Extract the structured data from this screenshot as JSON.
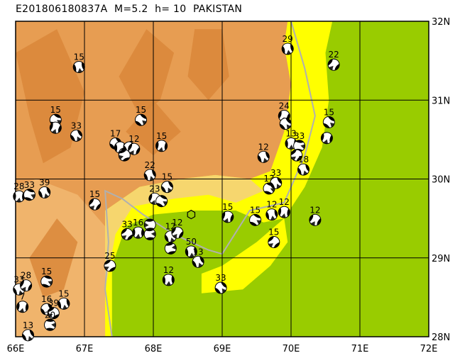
{
  "title": "E201806180837A  M=5.2  h= 10  PAKISTAN",
  "map": {
    "lon_range": [
      66,
      72
    ],
    "lat_range": [
      28,
      32
    ],
    "lon_ticks": [
      "66E",
      "67E",
      "68E",
      "69E",
      "70E",
      "71E",
      "72E"
    ],
    "lat_ticks": [
      "28N",
      "29N",
      "30N",
      "31N",
      "32N"
    ],
    "grid": true,
    "colors": {
      "highland_dark": "#d9873a",
      "highland": "#e79d52",
      "highland_light": "#f0b46c",
      "lowland_tan": "#f5d27a",
      "plain_yellow": "#ffff00",
      "plain_green": "#99cc00",
      "border": "#b0b0b0",
      "grid": "#000000"
    }
  },
  "epicenter": {
    "lon": 68.55,
    "lat": 29.55,
    "symbol": "hexagon-outline"
  },
  "events": [
    {
      "lon": 66.92,
      "lat": 31.42,
      "depth": "15",
      "rot": 30
    },
    {
      "lon": 66.58,
      "lat": 30.75,
      "depth": "15",
      "rot": -20
    },
    {
      "lon": 66.58,
      "lat": 30.65,
      "depth": "",
      "rot": 60
    },
    {
      "lon": 66.88,
      "lat": 30.55,
      "depth": "33",
      "rot": 10
    },
    {
      "lon": 66.05,
      "lat": 29.78,
      "depth": "28",
      "rot": 45
    },
    {
      "lon": 66.2,
      "lat": 29.8,
      "depth": "33",
      "rot": -30
    },
    {
      "lon": 66.42,
      "lat": 29.83,
      "depth": "39",
      "rot": 20
    },
    {
      "lon": 67.15,
      "lat": 29.68,
      "depth": "15",
      "rot": 80
    },
    {
      "lon": 67.45,
      "lat": 30.45,
      "depth": "17",
      "rot": 0
    },
    {
      "lon": 67.52,
      "lat": 30.4,
      "depth": "",
      "rot": 40
    },
    {
      "lon": 67.58,
      "lat": 30.32,
      "depth": "",
      "rot": -40
    },
    {
      "lon": 67.65,
      "lat": 30.4,
      "depth": "",
      "rot": 20
    },
    {
      "lon": 67.72,
      "lat": 30.38,
      "depth": "12",
      "rot": 70
    },
    {
      "lon": 67.58,
      "lat": 30.3,
      "depth": "",
      "rot": 110
    },
    {
      "lon": 67.82,
      "lat": 30.75,
      "depth": "15",
      "rot": -10
    },
    {
      "lon": 68.12,
      "lat": 30.42,
      "depth": "15",
      "rot": 50
    },
    {
      "lon": 67.95,
      "lat": 30.05,
      "depth": "22",
      "rot": 20
    },
    {
      "lon": 68.02,
      "lat": 29.75,
      "depth": "23",
      "rot": 60
    },
    {
      "lon": 68.12,
      "lat": 29.72,
      "depth": "",
      "rot": -20
    },
    {
      "lon": 68.2,
      "lat": 29.9,
      "depth": "15",
      "rot": 10
    },
    {
      "lon": 67.62,
      "lat": 29.3,
      "depth": "33",
      "rot": 90
    },
    {
      "lon": 67.78,
      "lat": 29.32,
      "depth": "16",
      "rot": 45
    },
    {
      "lon": 67.95,
      "lat": 29.3,
      "depth": "19",
      "rot": -50
    },
    {
      "lon": 67.95,
      "lat": 29.42,
      "depth": "",
      "rot": 130
    },
    {
      "lon": 68.25,
      "lat": 29.27,
      "depth": "12",
      "rot": 20
    },
    {
      "lon": 68.35,
      "lat": 29.32,
      "depth": "12",
      "rot": 75
    },
    {
      "lon": 68.25,
      "lat": 29.12,
      "depth": "",
      "rot": -60
    },
    {
      "lon": 68.55,
      "lat": 29.08,
      "depth": "50",
      "rot": 35
    },
    {
      "lon": 68.65,
      "lat": 28.95,
      "depth": "13",
      "rot": 15
    },
    {
      "lon": 67.37,
      "lat": 28.9,
      "depth": "25",
      "rot": 100
    },
    {
      "lon": 68.22,
      "lat": 28.72,
      "depth": "12",
      "rot": 40
    },
    {
      "lon": 68.98,
      "lat": 28.62,
      "depth": "33",
      "rot": 0
    },
    {
      "lon": 69.08,
      "lat": 29.52,
      "depth": "15",
      "rot": 60
    },
    {
      "lon": 69.48,
      "lat": 29.48,
      "depth": "15",
      "rot": -20
    },
    {
      "lon": 69.72,
      "lat": 29.55,
      "depth": "12",
      "rot": 30
    },
    {
      "lon": 69.9,
      "lat": 29.58,
      "depth": "12",
      "rot": 50
    },
    {
      "lon": 69.75,
      "lat": 29.2,
      "depth": "15",
      "rot": 90
    },
    {
      "lon": 70.35,
      "lat": 29.48,
      "depth": "12",
      "rot": 70
    },
    {
      "lon": 69.6,
      "lat": 30.28,
      "depth": "12",
      "rot": 20
    },
    {
      "lon": 69.68,
      "lat": 29.88,
      "depth": "13",
      "rot": -30
    },
    {
      "lon": 69.78,
      "lat": 29.95,
      "depth": "33",
      "rot": 10
    },
    {
      "lon": 69.9,
      "lat": 30.8,
      "depth": "24",
      "rot": 60
    },
    {
      "lon": 69.92,
      "lat": 30.7,
      "depth": "",
      "rot": 0
    },
    {
      "lon": 70.0,
      "lat": 30.45,
      "depth": "13",
      "rot": 40
    },
    {
      "lon": 70.12,
      "lat": 30.42,
      "depth": "33",
      "rot": -40
    },
    {
      "lon": 70.08,
      "lat": 30.3,
      "depth": "",
      "rot": 90
    },
    {
      "lon": 70.18,
      "lat": 30.12,
      "depth": "18",
      "rot": 20
    },
    {
      "lon": 69.95,
      "lat": 31.65,
      "depth": "29",
      "rot": 30
    },
    {
      "lon": 70.62,
      "lat": 31.45,
      "depth": "22",
      "rot": 80
    },
    {
      "lon": 70.55,
      "lat": 30.72,
      "depth": "15",
      "rot": -10
    },
    {
      "lon": 70.52,
      "lat": 30.52,
      "depth": "",
      "rot": 55
    },
    {
      "lon": 66.05,
      "lat": 28.6,
      "depth": "33",
      "rot": 20
    },
    {
      "lon": 66.15,
      "lat": 28.65,
      "depth": "28",
      "rot": 70
    },
    {
      "lon": 66.45,
      "lat": 28.7,
      "depth": "15",
      "rot": -30
    },
    {
      "lon": 66.1,
      "lat": 28.38,
      "depth": "7",
      "rot": 50
    },
    {
      "lon": 66.45,
      "lat": 28.35,
      "depth": "16",
      "rot": 10
    },
    {
      "lon": 66.55,
      "lat": 28.3,
      "depth": "39",
      "rot": 100
    },
    {
      "lon": 66.7,
      "lat": 28.42,
      "depth": "15",
      "rot": 30
    },
    {
      "lon": 66.5,
      "lat": 28.15,
      "depth": "20",
      "rot": -45
    },
    {
      "lon": 66.18,
      "lat": 28.02,
      "depth": "13",
      "rot": 15
    }
  ]
}
